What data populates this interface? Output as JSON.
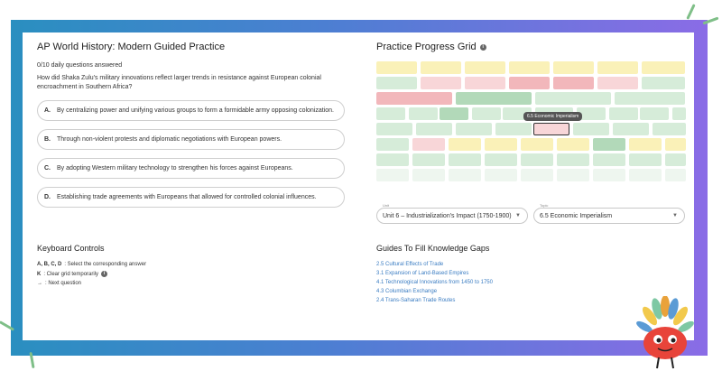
{
  "practice": {
    "title": "AP World History: Modern Guided Practice",
    "count": "0/10 daily questions answered",
    "question": "How did Shaka Zulu's military innovations reflect larger trends in resistance against European colonial encroachment in Southern Africa?",
    "options": [
      {
        "letter": "A.",
        "text": "By centralizing power and unifying various groups to form a formidable army opposing colonization."
      },
      {
        "letter": "B.",
        "text": "Through non-violent protests and diplomatic negotiations with European powers."
      },
      {
        "letter": "C.",
        "text": "By adopting Western military technology to strengthen his forces against Europeans."
      },
      {
        "letter": "D.",
        "text": "Establishing trade agreements with Europeans that allowed for controlled colonial influences."
      }
    ]
  },
  "keyboard": {
    "heading": "Keyboard Controls",
    "abcd_keys": "A, B, C, D",
    "abcd_desc": ": Select the corresponding answer",
    "k_key": "K",
    "k_desc": ": Clear grid temporarily",
    "next_key": "→",
    "next_desc": ": Next question"
  },
  "progress": {
    "heading": "Practice Progress Grid",
    "tooltip": "6.5 Economic Imperialism",
    "unit_caption": "Unit",
    "unit_value": "Unit 6 – Industrialization's Impact (1750-1900)",
    "topic_caption": "Topic",
    "topic_value": "6.5 Economic Imperialism"
  },
  "guides": {
    "heading": "Guides To Fill Knowledge Gaps",
    "links": [
      "2.5 Cultural Effects of Trade",
      "3.1 Expansion of Land-Based Empires",
      "4.1 Technological Innovations from 1450 to 1750",
      "4.3 Columbian Exchange",
      "2.4 Trans-Saharan Trade Routes"
    ]
  },
  "colors": {
    "yellow": "#faf1b8",
    "pink": "#f8d6d8",
    "red": "#f2b7bb",
    "lightgreen": "#d6ecd9",
    "green": "#b2d9b9",
    "pale": "#eef6ef"
  }
}
